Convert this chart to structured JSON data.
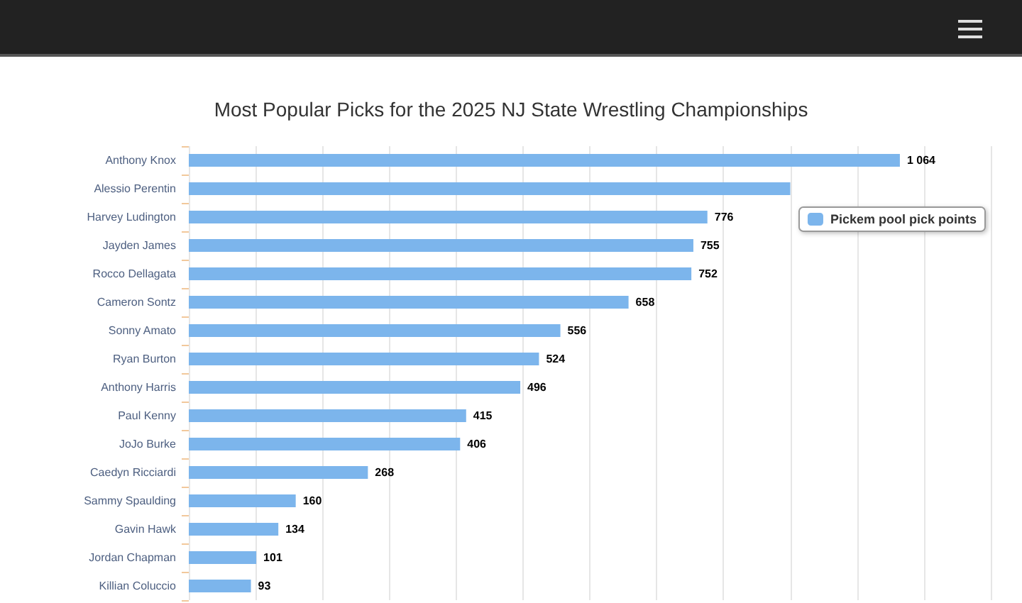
{
  "chart_data": {
    "type": "bar",
    "orientation": "horizontal",
    "title": "Most Popular Picks for the 2025 NJ State Wrestling Championships",
    "categories": [
      "Anthony Knox",
      "Alessio Perentin",
      "Harvey Ludington",
      "Jayden James",
      "Rocco Dellagata",
      "Cameron Sontz",
      "Sonny Amato",
      "Ryan Burton",
      "Anthony Harris",
      "Paul Kenny",
      "JoJo Burke",
      "Caedyn Ricciardi",
      "Sammy Spaulding",
      "Gavin Hawk",
      "Jordan Chapman",
      "Killian Coluccio"
    ],
    "series": [
      {
        "name": "Pickem pool pick points",
        "color": "#7cb5ec",
        "values": [
          1064,
          900,
          776,
          755,
          752,
          658,
          556,
          524,
          496,
          415,
          406,
          268,
          160,
          134,
          101,
          93
        ],
        "value_labels": [
          "1 064",
          null,
          "776",
          "755",
          "752",
          "658",
          "556",
          "524",
          "496",
          "415",
          "406",
          "268",
          "160",
          "134",
          "101",
          "93"
        ]
      }
    ],
    "xlim": [
      0,
      1200
    ],
    "xticks": [
      {
        "value": 0,
        "label": null
      },
      {
        "value": 100,
        "label": null
      },
      {
        "value": 200,
        "label": null
      },
      {
        "value": 300,
        "label": null
      },
      {
        "value": 400,
        "label": null
      },
      {
        "value": 500,
        "label": null
      },
      {
        "value": 600,
        "label": null
      },
      {
        "value": 700,
        "label": null
      },
      {
        "value": 800,
        "label": null
      },
      {
        "value": 900,
        "label": null
      },
      {
        "value": 1000,
        "label": null
      },
      {
        "value": 1100,
        "label": null
      },
      {
        "value": 1200,
        "label": null
      }
    ],
    "tick_labels": "y",
    "grid": "x",
    "legend": "top right"
  }
}
